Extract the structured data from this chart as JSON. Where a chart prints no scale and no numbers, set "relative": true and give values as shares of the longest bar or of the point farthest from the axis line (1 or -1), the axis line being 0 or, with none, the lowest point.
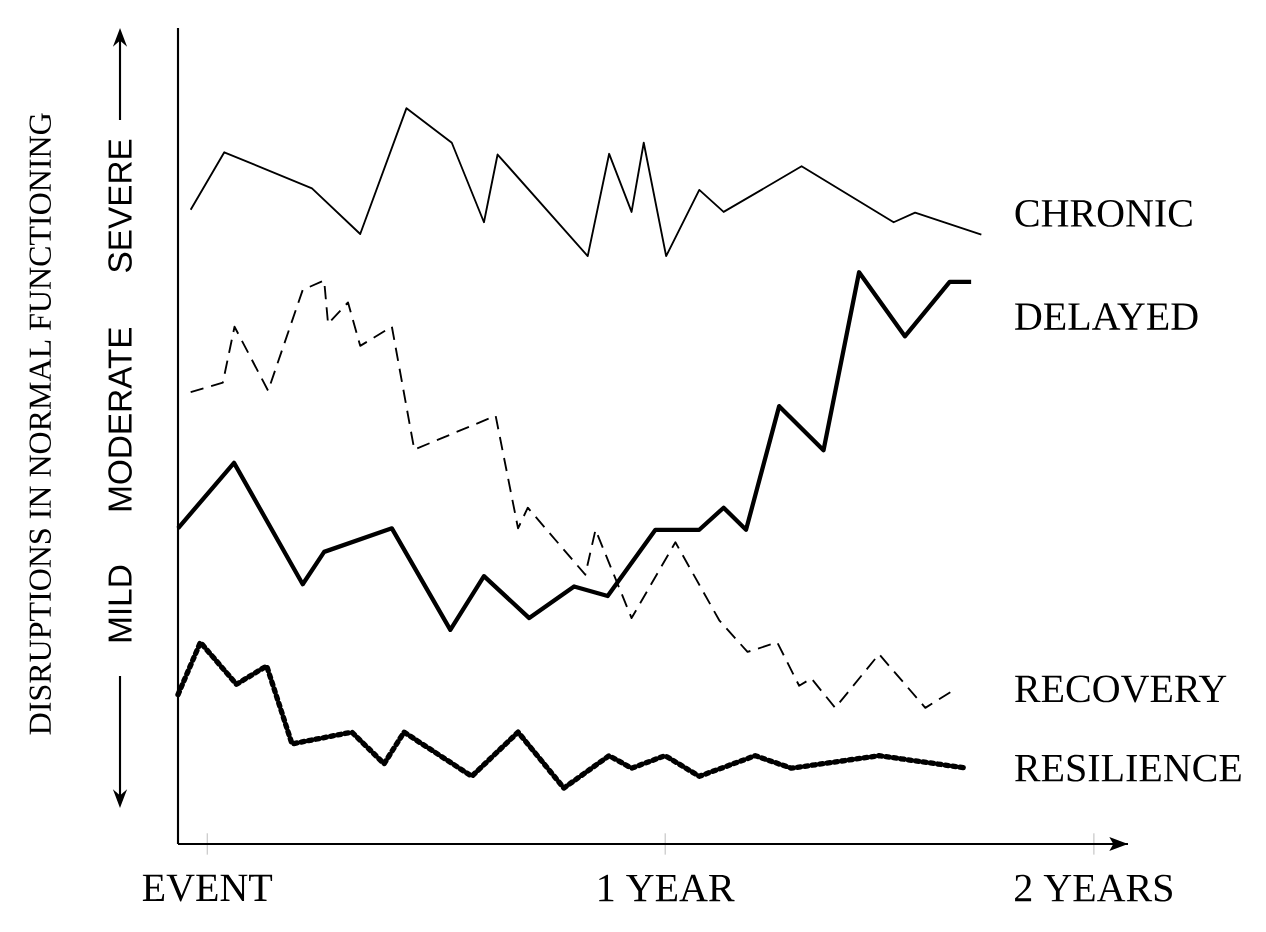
{
  "chart_data": {
    "type": "line",
    "relative": true,
    "ylabel": "DISRUPTIONS IN NORMAL FUNCTIONING",
    "annotations": [
      "MILD",
      "MODERATE",
      "SEVERE"
    ],
    "xlim": [
      0,
      1.95
    ],
    "xticks": [
      {
        "value": 0.06,
        "label": "EVENT"
      },
      {
        "value": 1,
        "label": "1 YEAR"
      },
      {
        "value": 1.88,
        "label": "2 YEARS"
      }
    ],
    "legend": false,
    "grid": false,
    "marker": "none",
    "series": [
      {
        "name": "CHRONIC",
        "color": "#000000",
        "line_style": "solid",
        "x": [
          0.026,
          0.095,
          0.275,
          0.374,
          0.469,
          0.562,
          0.628,
          0.656,
          0.841,
          0.885,
          0.931,
          0.956,
          1.002,
          1.07,
          1.12,
          1.28,
          1.469,
          1.513,
          1.649
        ],
        "values": [
          0.862,
          0.94,
          0.891,
          0.829,
          1.0,
          0.953,
          0.845,
          0.937,
          0.799,
          0.938,
          0.859,
          0.953,
          0.799,
          0.889,
          0.859,
          0.921,
          0.845,
          0.858,
          0.828
        ]
      },
      {
        "name": "DELAYED",
        "color": "#000000",
        "line_style": "solid",
        "x": [
          0,
          0.115,
          0.256,
          0.3,
          0.439,
          0.559,
          0.628,
          0.721,
          0.813,
          0.882,
          0.98,
          1.07,
          1.12,
          1.166,
          1.234,
          1.325,
          1.398,
          1.492,
          1.584,
          1.628
        ],
        "values": [
          0.429,
          0.518,
          0.353,
          0.397,
          0.429,
          0.291,
          0.364,
          0.307,
          0.35,
          0.337,
          0.427,
          0.427,
          0.457,
          0.427,
          0.595,
          0.535,
          0.777,
          0.69,
          0.764,
          0.764
        ]
      },
      {
        "name": "RECOVERY",
        "color": "#000000",
        "line_style": "dashed",
        "x": [
          0.026,
          0.092,
          0.116,
          0.185,
          0.256,
          0.3,
          0.308,
          0.349,
          0.374,
          0.439,
          0.485,
          0.652,
          0.698,
          0.718,
          0.836,
          0.857,
          0.931,
          1.021,
          1.111,
          1.169,
          1.23,
          1.275,
          1.3,
          1.349,
          1.439,
          1.534,
          1.587
        ],
        "values": [
          0.614,
          0.627,
          0.703,
          0.616,
          0.753,
          0.766,
          0.707,
          0.736,
          0.677,
          0.703,
          0.536,
          0.582,
          0.429,
          0.457,
          0.366,
          0.427,
          0.307,
          0.41,
          0.304,
          0.261,
          0.274,
          0.215,
          0.225,
          0.185,
          0.258,
          0.185,
          0.207
        ]
      },
      {
        "name": "RESILIENCE",
        "color": "#000000",
        "line_style": "dotted",
        "x": [
          0,
          0.046,
          0.12,
          0.182,
          0.234,
          0.357,
          0.423,
          0.464,
          0.603,
          0.698,
          0.792,
          0.885,
          0.931,
          1.0,
          1.07,
          1.185,
          1.259,
          1.439,
          1.62
        ],
        "values": [
          0.203,
          0.274,
          0.217,
          0.242,
          0.136,
          0.152,
          0.109,
          0.152,
          0.092,
          0.152,
          0.076,
          0.12,
          0.103,
          0.12,
          0.092,
          0.12,
          0.103,
          0.12,
          0.103
        ]
      }
    ]
  }
}
